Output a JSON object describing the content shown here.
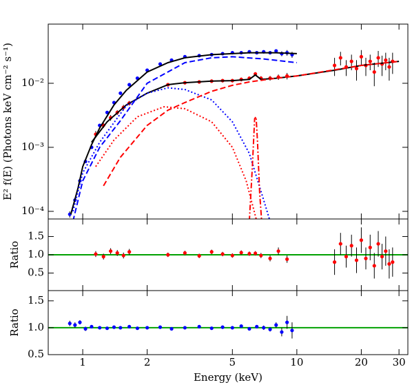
{
  "chart_data": [
    {
      "type": "line",
      "ylabel": "E² f(E) (Photons keV cm⁻² s⁻¹)",
      "log_x": true,
      "log_y": true,
      "xlim": [
        0.69,
        33
      ],
      "ylim": [
        7.6e-05,
        0.084
      ],
      "yticks": [
        {
          "value": 0.0001,
          "label": "10⁻⁴"
        },
        {
          "value": 0.001,
          "label": "10⁻³"
        },
        {
          "value": 0.01,
          "label": "10⁻²"
        }
      ],
      "series": [
        {
          "color": "#0000ff",
          "style": "points",
          "x": [
            0.87,
            0.92,
            0.97,
            1.03,
            1.1,
            1.2,
            1.3,
            1.4,
            1.5,
            1.65,
            1.8,
            2.0,
            2.3,
            2.6,
            3.0,
            3.5,
            4.0,
            4.5,
            5.0,
            5.5,
            6.0,
            6.5,
            7.0,
            7.5,
            8.0,
            8.5,
            9.0,
            9.5
          ],
          "values": [
            9e-05,
            0.00015,
            0.0003,
            0.0006,
            0.001,
            0.0022,
            0.0035,
            0.005,
            0.007,
            0.0095,
            0.012,
            0.016,
            0.02,
            0.023,
            0.026,
            0.027,
            0.028,
            0.029,
            0.03,
            0.03,
            0.031,
            0.03,
            0.031,
            0.03,
            0.032,
            0.029,
            0.03,
            0.028
          ],
          "errors": [
            1e-05,
            1e-05,
            2e-05,
            3e-05,
            5e-05,
            0.0001,
            0.00015,
            0.0002,
            0.0003,
            0.0004,
            0.0005,
            0.0006,
            0.0007,
            0.0008,
            0.0009,
            0.001,
            0.001,
            0.001,
            0.0012,
            0.0012,
            0.0014,
            0.0015,
            0.0017,
            0.0018,
            0.002,
            0.0025,
            0.003,
            0.003
          ]
        },
        {
          "color": "#ff0000",
          "style": "points",
          "x": [
            1.15,
            1.25,
            1.35,
            1.45,
            1.55,
            1.65,
            2.5,
            3,
            3.5,
            4,
            4.5,
            5,
            5.5,
            6,
            6.4,
            6.8,
            7.5,
            8.2,
            9,
            15,
            16,
            17,
            18,
            19,
            20,
            21,
            22,
            23,
            24,
            25,
            26,
            27,
            28
          ],
          "values": [
            0.0016,
            0.0022,
            0.0029,
            0.0035,
            0.0042,
            0.0049,
            0.0095,
            0.0102,
            0.0105,
            0.0108,
            0.011,
            0.011,
            0.0115,
            0.012,
            0.014,
            0.012,
            0.012,
            0.0125,
            0.013,
            0.019,
            0.025,
            0.018,
            0.022,
            0.017,
            0.026,
            0.019,
            0.022,
            0.015,
            0.025,
            0.02,
            0.023,
            0.018,
            0.022
          ],
          "errors": [
            0.0002,
            0.0002,
            0.0003,
            0.0003,
            0.0004,
            0.0004,
            0.0006,
            0.0006,
            0.0006,
            0.0007,
            0.0007,
            0.0007,
            0.0008,
            0.0008,
            0.0009,
            0.0009,
            0.001,
            0.0012,
            0.0015,
            0.006,
            0.006,
            0.005,
            0.006,
            0.006,
            0.007,
            0.006,
            0.006,
            0.006,
            0.007,
            0.007,
            0.007,
            0.007,
            0.008
          ]
        },
        {
          "color": "#000000",
          "style": "solid",
          "x": [
            0.88,
            0.95,
            1.0,
            1.1,
            1.2,
            1.4,
            1.6,
            2.0,
            2.5,
            3,
            4,
            5,
            6,
            8,
            10
          ],
          "values": [
            9e-05,
            0.00023,
            0.0005,
            0.0011,
            0.002,
            0.0046,
            0.0078,
            0.015,
            0.021,
            0.025,
            0.028,
            0.029,
            0.03,
            0.03,
            0.029
          ]
        },
        {
          "color": "#000000",
          "style": "solid",
          "x": [
            1.1,
            1.3,
            1.6,
            2.0,
            2.5,
            3,
            4,
            5,
            6,
            6.4,
            6.8,
            8,
            10,
            15,
            20,
            30
          ],
          "values": [
            0.0012,
            0.0025,
            0.0046,
            0.007,
            0.0095,
            0.0102,
            0.0108,
            0.011,
            0.0115,
            0.0135,
            0.0115,
            0.012,
            0.013,
            0.016,
            0.019,
            0.022
          ]
        },
        {
          "color": "#0000ff",
          "style": "dashed",
          "x": [
            0.9,
            1.0,
            1.2,
            1.5,
            2,
            3,
            4,
            5,
            7,
            10
          ],
          "values": [
            7e-05,
            0.0003,
            0.001,
            0.0026,
            0.01,
            0.021,
            0.025,
            0.026,
            0.024,
            0.021
          ]
        },
        {
          "color": "#0000ff",
          "style": "dotted",
          "x": [
            0.9,
            1.0,
            1.2,
            1.6,
            2,
            2.5,
            3,
            4,
            5,
            6,
            7,
            7.5
          ],
          "values": [
            0.0001,
            0.0004,
            0.0012,
            0.0045,
            0.007,
            0.0085,
            0.008,
            0.0055,
            0.0025,
            0.0008,
            0.00015,
            7e-05
          ]
        },
        {
          "color": "#ff0000",
          "style": "dashed",
          "x": [
            1.25,
            1.5,
            2,
            2.5,
            3,
            4,
            5,
            6,
            8,
            10,
            20,
            30
          ],
          "values": [
            0.00025,
            0.0007,
            0.0022,
            0.0038,
            0.005,
            0.0075,
            0.0093,
            0.0105,
            0.012,
            0.013,
            0.019,
            0.022
          ]
        },
        {
          "color": "#ff0000",
          "style": "dotted",
          "x": [
            1.15,
            1.4,
            1.8,
            2.4,
            3,
            4,
            5,
            5.8,
            6.5
          ],
          "values": [
            0.0005,
            0.0013,
            0.003,
            0.0043,
            0.004,
            0.0025,
            0.001,
            0.0003,
            7e-05
          ]
        },
        {
          "color": "#ff0000",
          "style": "dashdot",
          "x": [
            6.0,
            6.2,
            6.35,
            6.45,
            6.55,
            6.7,
            6.85
          ],
          "values": [
            7e-05,
            0.0005,
            0.0028,
            0.003,
            0.0012,
            0.0002,
            7e-05
          ]
        }
      ]
    },
    {
      "type": "scatter",
      "ylabel": "Ratio",
      "log_x": true,
      "xlim": [
        0.69,
        33
      ],
      "ylim": [
        0.02,
        1.98
      ],
      "yticks": [
        0.5,
        {
          "value": 1,
          "label": "1.0"
        },
        1.5
      ],
      "reference_line": 1,
      "reference_color": "#00a000",
      "series": [
        {
          "color": "#ff0000",
          "x": [
            1.15,
            1.25,
            1.35,
            1.45,
            1.55,
            1.65,
            2.5,
            3,
            3.5,
            4,
            4.5,
            5,
            5.5,
            6,
            6.4,
            6.8,
            7.5,
            8.2,
            9,
            15,
            16,
            17,
            18,
            19,
            20,
            21,
            22,
            23,
            24,
            25,
            26,
            27,
            28
          ],
          "values": [
            1.02,
            0.95,
            1.1,
            1.05,
            0.98,
            1.08,
            1.0,
            1.05,
            0.97,
            1.08,
            1.02,
            0.98,
            1.06,
            1.03,
            1.04,
            0.98,
            0.9,
            1.1,
            0.88,
            0.8,
            1.3,
            0.95,
            1.25,
            0.85,
            1.4,
            0.9,
            1.2,
            0.7,
            1.3,
            0.95,
            1.1,
            0.75,
            0.8
          ],
          "errors": [
            0.08,
            0.08,
            0.08,
            0.08,
            0.08,
            0.08,
            0.06,
            0.06,
            0.06,
            0.06,
            0.06,
            0.06,
            0.06,
            0.06,
            0.06,
            0.07,
            0.08,
            0.1,
            0.1,
            0.35,
            0.3,
            0.3,
            0.3,
            0.35,
            0.35,
            0.3,
            0.35,
            0.35,
            0.35,
            0.35,
            0.4,
            0.4,
            0.4
          ]
        }
      ]
    },
    {
      "type": "scatter",
      "ylabel": "Ratio",
      "xlabel": "Energy (keV)",
      "log_x": true,
      "xlim": [
        0.69,
        33
      ],
      "ylim": [
        0.5,
        1.69
      ],
      "xticks": [
        1,
        2,
        5,
        10,
        20,
        30
      ],
      "yticks": [
        0.5,
        {
          "value": 1,
          "label": "1.0"
        },
        1.5
      ],
      "reference_line": 1,
      "reference_color": "#00a000",
      "series": [
        {
          "color": "#0000ff",
          "x": [
            0.87,
            0.92,
            0.97,
            1.03,
            1.1,
            1.2,
            1.3,
            1.4,
            1.5,
            1.65,
            1.8,
            2.0,
            2.3,
            2.6,
            3.0,
            3.5,
            4.0,
            4.5,
            5.0,
            5.5,
            6.0,
            6.5,
            7.0,
            7.5,
            8.0,
            8.5,
            9.0,
            9.5
          ],
          "values": [
            1.08,
            1.05,
            1.1,
            0.98,
            1.02,
            1.0,
            0.99,
            1.01,
            1.0,
            1.02,
            0.99,
            1.0,
            1.01,
            0.98,
            1.0,
            1.02,
            0.99,
            1.01,
            1.0,
            1.03,
            0.98,
            1.02,
            1.0,
            0.97,
            1.05,
            0.92,
            1.1,
            0.95
          ],
          "errors": [
            0.05,
            0.05,
            0.04,
            0.04,
            0.03,
            0.02,
            0.02,
            0.02,
            0.02,
            0.02,
            0.02,
            0.02,
            0.02,
            0.02,
            0.02,
            0.02,
            0.02,
            0.02,
            0.03,
            0.03,
            0.03,
            0.03,
            0.04,
            0.04,
            0.05,
            0.08,
            0.12,
            0.15
          ]
        }
      ]
    }
  ]
}
